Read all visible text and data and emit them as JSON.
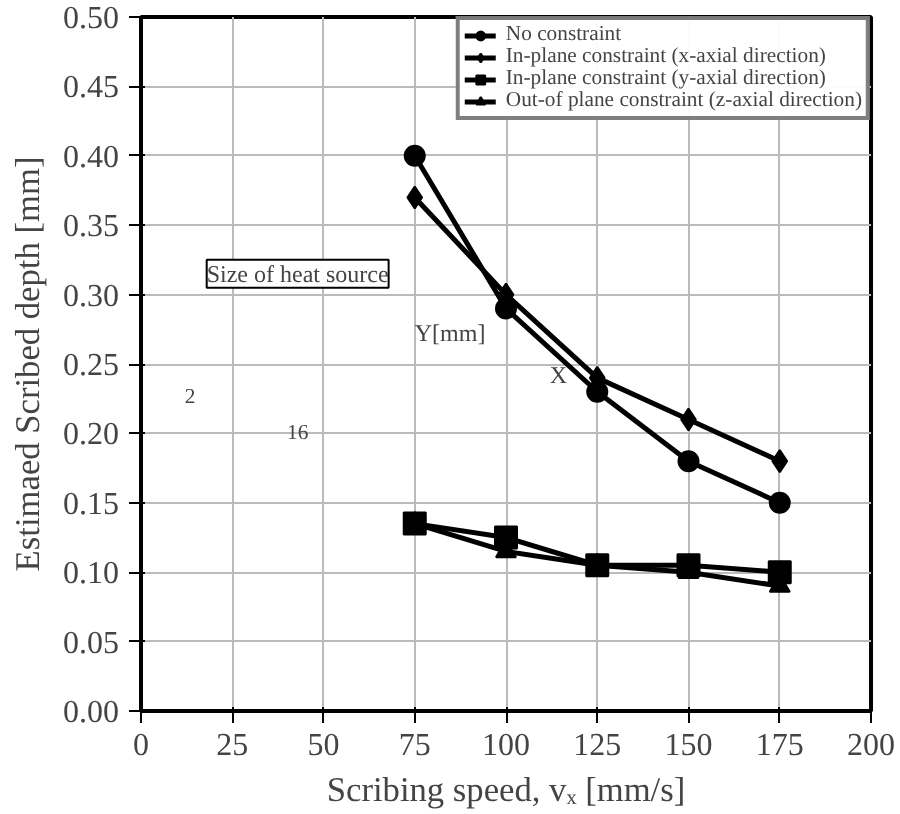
{
  "chart_data": {
    "type": "line",
    "xlabel": "Scribing speed, vₓ [mm/s]",
    "ylabel": "Estimaed Scribed depth [mm]",
    "x": [
      75,
      100,
      125,
      150,
      175
    ],
    "series": [
      {
        "name": "No constraint",
        "color": "#000000",
        "marker": "circle",
        "values": [
          0.4,
          0.29,
          0.23,
          0.18,
          0.15
        ]
      },
      {
        "name": "In-plane constraint (x-axial direction)",
        "color": "#000000",
        "marker": "diamond",
        "values": [
          0.37,
          0.3,
          0.24,
          0.21,
          0.18
        ]
      },
      {
        "name": "In-plane constraint (y-axial direction)",
        "color": "#000000",
        "marker": "square",
        "values": [
          0.135,
          0.125,
          0.105,
          0.105,
          0.1
        ]
      },
      {
        "name": "Out-of plane constraint (z-axial direction)",
        "color": "#000000",
        "marker": "triangle",
        "values": [
          0.135,
          0.115,
          0.105,
          0.1,
          0.09
        ]
      }
    ],
    "xlim": [
      0,
      200
    ],
    "xticks": [
      0,
      25,
      50,
      75,
      100,
      125,
      150,
      175,
      200
    ],
    "ylim": [
      0,
      0.5
    ],
    "yticks": [
      {
        "value": 0,
        "label": "0.00"
      },
      {
        "value": 0.05,
        "label": "0.05"
      },
      {
        "value": 0.1,
        "label": "0.10"
      },
      {
        "value": 0.15,
        "label": "0.15"
      },
      {
        "value": 0.2,
        "label": "0.20"
      },
      {
        "value": 0.25,
        "label": "0.25"
      },
      {
        "value": 0.3,
        "label": "0.30"
      },
      {
        "value": 0.35,
        "label": "0.35"
      },
      {
        "value": 0.4,
        "label": "0.40"
      },
      {
        "value": 0.45,
        "label": "0.45"
      },
      {
        "value": 0.5,
        "label": "0.50"
      }
    ],
    "grid": true,
    "legend": "top right",
    "annotations": [
      "Size of heat source",
      "Y[mm]",
      "X",
      "2",
      "16"
    ]
  }
}
